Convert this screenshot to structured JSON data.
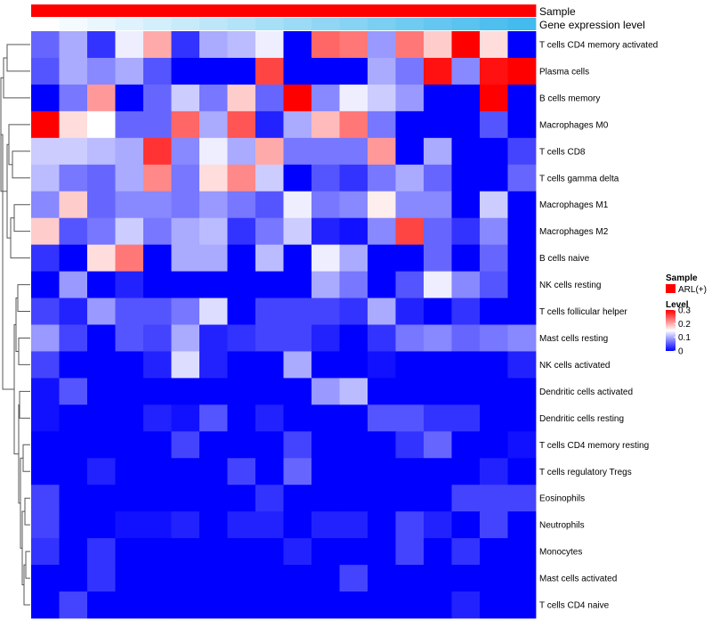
{
  "chart_data": {
    "type": "heatmap",
    "title": "",
    "annotation_rows": [
      {
        "name": "Sample",
        "colors": [
          "#ff0000",
          "#ff0000",
          "#ff0000",
          "#ff0000",
          "#ff0000",
          "#ff0000",
          "#ff0000",
          "#ff0000",
          "#ff0000",
          "#ff0000",
          "#ff0000",
          "#ff0000",
          "#ff0000",
          "#ff0000",
          "#ff0000",
          "#ff0000",
          "#ff0000",
          "#ff0000"
        ]
      },
      {
        "name": "Gene expression level",
        "colors": [
          "#ffffff",
          "#f4fbfe",
          "#e9f7fd",
          "#def3fc",
          "#d3effb",
          "#c8ebfa",
          "#bde7f9",
          "#b2e3f8",
          "#a7dff7",
          "#9cdbf6",
          "#91d7f5",
          "#86d3f4",
          "#7bcff3",
          "#70cbf2",
          "#65c7f1",
          "#5ac3f0",
          "#4fbfef",
          "#44bbee"
        ]
      }
    ],
    "rows": [
      "T cells CD4 memory activated",
      "Plasma cells",
      "B cells memory",
      "Macrophages M0",
      "T cells CD8",
      "T cells gamma delta",
      "Macrophages M1",
      "Macrophages M2",
      "B cells naive",
      "NK cells resting",
      "T cells follicular helper",
      "Mast cells resting",
      "NK cells activated",
      "Dendritic cells activated",
      "Dendritic cells resting",
      "T cells CD4 memory resting",
      "T cells regulatory  Tregs",
      "Eosinophils",
      "Neutrophils",
      "Monocytes",
      "Mast cells activated",
      "T cells CD4 naive"
    ],
    "columns": 18,
    "values": [
      [
        0.06,
        0.1,
        0.03,
        0.14,
        0.2,
        0.03,
        0.1,
        0.11,
        0.14,
        0.0,
        0.24,
        0.23,
        0.09,
        0.23,
        0.18,
        0.3,
        0.17,
        0.0
      ],
      [
        0.05,
        0.1,
        0.08,
        0.1,
        0.05,
        0.0,
        0.0,
        0.0,
        0.26,
        0.0,
        0.0,
        0.0,
        0.1,
        0.07,
        0.29,
        0.08,
        0.29,
        0.3
      ],
      [
        0.0,
        0.07,
        0.21,
        0.0,
        0.06,
        0.12,
        0.07,
        0.18,
        0.06,
        0.3,
        0.08,
        0.14,
        0.12,
        0.09,
        0.0,
        0.0,
        0.3,
        0.0
      ],
      [
        0.3,
        0.17,
        0.15,
        0.06,
        0.06,
        0.24,
        0.1,
        0.25,
        0.02,
        0.1,
        0.19,
        0.23,
        0.07,
        0.0,
        0.0,
        0.0,
        0.05,
        0.0
      ],
      [
        0.12,
        0.12,
        0.11,
        0.1,
        0.27,
        0.08,
        0.14,
        0.1,
        0.2,
        0.07,
        0.07,
        0.07,
        0.21,
        0.0,
        0.1,
        0.0,
        0.0,
        0.04
      ],
      [
        0.11,
        0.07,
        0.06,
        0.1,
        0.22,
        0.07,
        0.17,
        0.22,
        0.12,
        0.0,
        0.05,
        0.03,
        0.07,
        0.1,
        0.06,
        0.0,
        0.0,
        0.06
      ],
      [
        0.08,
        0.18,
        0.06,
        0.08,
        0.08,
        0.07,
        0.09,
        0.07,
        0.05,
        0.14,
        0.07,
        0.08,
        0.16,
        0.08,
        0.08,
        0.0,
        0.12,
        0.0
      ],
      [
        0.18,
        0.05,
        0.07,
        0.12,
        0.07,
        0.1,
        0.11,
        0.03,
        0.07,
        0.12,
        0.02,
        0.01,
        0.08,
        0.26,
        0.06,
        0.03,
        0.08,
        0.0
      ],
      [
        0.03,
        0.0,
        0.17,
        0.23,
        0.0,
        0.1,
        0.1,
        0.0,
        0.11,
        0.0,
        0.14,
        0.1,
        0.0,
        0.0,
        0.06,
        0.0,
        0.06,
        0.0
      ],
      [
        0.0,
        0.09,
        0.0,
        0.02,
        0.0,
        0.0,
        0.0,
        0.0,
        0.0,
        0.0,
        0.1,
        0.07,
        0.0,
        0.05,
        0.14,
        0.08,
        0.05,
        0.0
      ],
      [
        0.04,
        0.02,
        0.09,
        0.05,
        0.05,
        0.07,
        0.13,
        0.0,
        0.04,
        0.04,
        0.04,
        0.03,
        0.1,
        0.02,
        0.0,
        0.03,
        0.0,
        0.0
      ],
      [
        0.09,
        0.04,
        0.0,
        0.05,
        0.04,
        0.1,
        0.02,
        0.03,
        0.04,
        0.04,
        0.02,
        0.0,
        0.03,
        0.07,
        0.08,
        0.06,
        0.07,
        0.08
      ],
      [
        0.04,
        0.0,
        0.0,
        0.0,
        0.02,
        0.13,
        0.02,
        0.0,
        0.0,
        0.1,
        0.0,
        0.0,
        0.01,
        0.0,
        0.0,
        0.0,
        0.0,
        0.02
      ],
      [
        0.01,
        0.05,
        0.0,
        0.0,
        0.0,
        0.0,
        0.0,
        0.0,
        0.0,
        0.0,
        0.09,
        0.11,
        0.0,
        0.0,
        0.0,
        0.0,
        0.0,
        0.0
      ],
      [
        0.01,
        0.0,
        0.0,
        0.0,
        0.02,
        0.01,
        0.05,
        0.0,
        0.02,
        0.0,
        0.0,
        0.0,
        0.05,
        0.05,
        0.03,
        0.03,
        0.0,
        0.0
      ],
      [
        0.0,
        0.0,
        0.0,
        0.0,
        0.0,
        0.04,
        0.0,
        0.0,
        0.0,
        0.04,
        0.0,
        0.0,
        0.0,
        0.03,
        0.06,
        0.0,
        0.0,
        0.01
      ],
      [
        0.0,
        0.0,
        0.02,
        0.0,
        0.0,
        0.0,
        0.0,
        0.04,
        0.0,
        0.06,
        0.0,
        0.0,
        0.0,
        0.0,
        0.0,
        0.0,
        0.02,
        0.0
      ],
      [
        0.04,
        0.0,
        0.0,
        0.0,
        0.0,
        0.0,
        0.0,
        0.0,
        0.03,
        0.0,
        0.0,
        0.0,
        0.0,
        0.0,
        0.0,
        0.04,
        0.04,
        0.04
      ],
      [
        0.04,
        0.0,
        0.0,
        0.01,
        0.01,
        0.02,
        0.0,
        0.02,
        0.02,
        0.0,
        0.02,
        0.02,
        0.0,
        0.04,
        0.02,
        0.0,
        0.04,
        0.0
      ],
      [
        0.03,
        0.0,
        0.03,
        0.0,
        0.0,
        0.0,
        0.0,
        0.0,
        0.0,
        0.02,
        0.0,
        0.0,
        0.0,
        0.04,
        0.0,
        0.03,
        0.0,
        0.0
      ],
      [
        0.0,
        0.0,
        0.03,
        0.0,
        0.0,
        0.0,
        0.0,
        0.0,
        0.0,
        0.0,
        0.0,
        0.04,
        0.0,
        0.0,
        0.0,
        0.0,
        0.0,
        0.0
      ],
      [
        0.0,
        0.04,
        0.0,
        0.0,
        0.0,
        0.0,
        0.0,
        0.0,
        0.0,
        0.0,
        0.0,
        0.0,
        0.0,
        0.0,
        0.0,
        0.02,
        0.0,
        0.0
      ]
    ],
    "color_scale": {
      "domain": [
        0,
        0.15,
        0.3
      ],
      "colors": [
        "#0000ff",
        "#ffffff",
        "#ff0000"
      ]
    },
    "legend_sample": {
      "title": "Sample",
      "label": "ARL(+)",
      "color": "#ff0000"
    },
    "legend_level": {
      "title": "Level",
      "ticks": [
        "0.3",
        "0.2",
        "0.1",
        "0"
      ],
      "tick_values": [
        0.3,
        0.2,
        0.1,
        0
      ]
    },
    "row_dendrogram": true
  }
}
